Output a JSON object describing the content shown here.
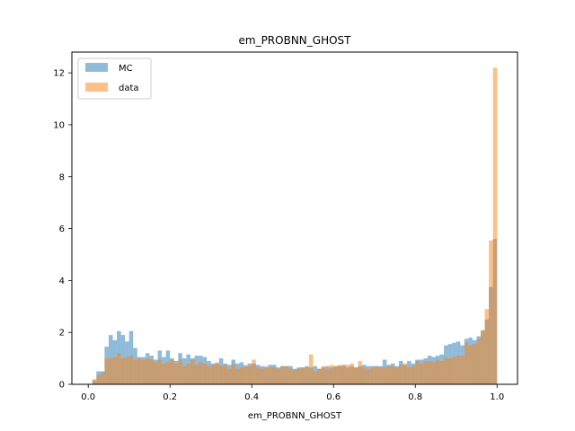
{
  "chart_data": {
    "type": "histogram",
    "title": "em_PROBNN_GHOST",
    "xlabel": "em_PROBNN_GHOST",
    "ylabel": "",
    "xlim": [
      -0.04,
      1.05
    ],
    "ylim": [
      0,
      12.8
    ],
    "xticks": [
      0.0,
      0.2,
      0.4,
      0.6,
      0.8,
      1.0
    ],
    "yticks": [
      0,
      2,
      4,
      6,
      8,
      10,
      12
    ],
    "bin_start": 0.0,
    "bin_width": 0.01,
    "legend_position": "top-left",
    "series": [
      {
        "name": "MC",
        "color": "#1f77b4",
        "alpha": 0.5,
        "values": [
          0.0,
          0.15,
          0.5,
          0.5,
          1.45,
          1.9,
          1.7,
          2.05,
          1.9,
          1.65,
          2.05,
          1.4,
          1.05,
          1.05,
          1.2,
          1.1,
          0.95,
          1.3,
          1.05,
          1.3,
          1.0,
          0.9,
          1.2,
          1.0,
          1.15,
          1.0,
          1.1,
          1.1,
          1.05,
          0.9,
          0.8,
          0.8,
          1.0,
          0.8,
          0.75,
          0.95,
          0.8,
          0.85,
          0.7,
          0.8,
          0.8,
          0.75,
          0.7,
          0.65,
          0.75,
          0.75,
          0.65,
          0.7,
          0.7,
          0.7,
          0.6,
          0.65,
          0.65,
          0.7,
          0.65,
          0.7,
          0.6,
          0.65,
          0.7,
          0.65,
          0.7,
          0.7,
          0.75,
          0.65,
          0.7,
          0.65,
          0.7,
          0.75,
          0.7,
          0.7,
          0.7,
          0.7,
          0.95,
          0.75,
          0.8,
          0.7,
          0.9,
          0.75,
          0.9,
          0.8,
          0.95,
          0.95,
          1.0,
          1.1,
          1.05,
          1.1,
          1.15,
          1.5,
          1.55,
          1.6,
          1.65,
          1.5,
          1.75,
          1.8,
          1.7,
          1.85,
          2.05,
          2.5,
          3.75,
          5.6
        ]
      },
      {
        "name": "data",
        "color": "#ff7f0e",
        "alpha": 0.5,
        "values": [
          0.0,
          0.2,
          0.35,
          0.45,
          1.0,
          1.0,
          1.05,
          1.2,
          1.0,
          1.05,
          1.1,
          0.95,
          1.0,
          0.95,
          1.0,
          0.95,
          0.85,
          0.95,
          0.8,
          0.85,
          0.95,
          0.8,
          0.95,
          0.7,
          0.8,
          0.95,
          0.75,
          0.85,
          0.8,
          0.7,
          0.75,
          0.85,
          0.7,
          0.75,
          0.6,
          0.8,
          0.6,
          0.65,
          0.75,
          0.7,
          0.95,
          0.65,
          0.6,
          0.7,
          0.65,
          0.65,
          0.6,
          0.7,
          0.7,
          0.6,
          0.55,
          0.6,
          0.65,
          0.65,
          1.15,
          0.5,
          0.6,
          0.7,
          0.6,
          0.75,
          0.7,
          0.75,
          0.7,
          0.75,
          0.8,
          0.65,
          0.9,
          0.65,
          0.6,
          0.65,
          0.7,
          0.65,
          0.65,
          0.7,
          0.7,
          0.65,
          0.75,
          0.8,
          0.65,
          0.7,
          0.9,
          0.8,
          0.9,
          0.9,
          0.85,
          0.95,
          0.9,
          1.05,
          1.0,
          1.05,
          1.1,
          1.1,
          1.6,
          1.5,
          1.55,
          1.75,
          2.1,
          2.9,
          5.55,
          12.2
        ]
      }
    ]
  }
}
